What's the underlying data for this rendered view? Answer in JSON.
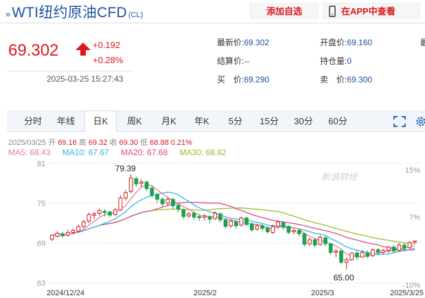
{
  "header": {
    "title": "WTI纽约原油CFD",
    "code": "(CL)",
    "add_watch": "添加自选",
    "open_app": "在APP中查看"
  },
  "quote": {
    "price": "69.302",
    "change": "+0.192",
    "change_pct": "+0.28%",
    "time": "2025-03-25 15:27:43",
    "fields": [
      {
        "label": "最新价:",
        "value": "69.302"
      },
      {
        "label": "开盘价:",
        "value": "69.160"
      },
      {
        "label": "结算价:",
        "value": "--"
      },
      {
        "label": "持仓量:",
        "value": "0"
      },
      {
        "label": "买　价:",
        "value": "69.290"
      },
      {
        "label": "卖　价:",
        "value": "69.300"
      }
    ],
    "overflow_char": "最"
  },
  "tabs": [
    "分时",
    "年线",
    "日K",
    "周K",
    "月K",
    "年K",
    "5分",
    "15分",
    "30分",
    "60分"
  ],
  "active_tab": "日K",
  "info": {
    "date": "2025/03/25",
    "open_label": "开",
    "open": "69.16",
    "high_label": "高",
    "high": "69.32",
    "close_label": "收",
    "close": "69.30",
    "low_label": "低",
    "low": "68.88",
    "pct": "0.21%"
  },
  "ma": {
    "ma5": "MA5: 68.43",
    "ma5_color": "#e879a8",
    "ma10": "MA10: 67.67",
    "ma10_color": "#33b5e5",
    "ma20": "MA20: 67.68",
    "ma20_color": "#d64b7c",
    "ma30": "MA30: 68.82",
    "ma30_color": "#9bbd2a"
  },
  "colors": {
    "up": "#d8191e",
    "down": "#1aa34a",
    "accent": "#1e50a2"
  },
  "chart_data": {
    "type": "candlestick",
    "y_ticks": [
      "81",
      "75",
      "69",
      "63"
    ],
    "ylim": [
      63,
      81
    ],
    "right_ticks": [
      "15%",
      "7%",
      "-10%"
    ],
    "x_ticks": [
      "2024/12/24",
      "2025/2",
      "2025/3",
      "2025/3/25"
    ],
    "annotations": {
      "high": "79.39",
      "low": "65.00"
    },
    "watermark": "新浪财经",
    "candles": [
      [
        69.6,
        70.2,
        69.3,
        70.3
      ],
      [
        70.0,
        70.5,
        69.8,
        70.8
      ],
      [
        70.4,
        70.1,
        69.8,
        70.7
      ],
      [
        70.2,
        70.6,
        70.0,
        71.0
      ],
      [
        70.6,
        70.9,
        70.3,
        71.2
      ],
      [
        70.8,
        71.5,
        70.6,
        71.8
      ],
      [
        71.5,
        72.2,
        71.2,
        72.5
      ],
      [
        72.3,
        73.3,
        72.0,
        73.6
      ],
      [
        73.2,
        73.4,
        72.6,
        73.7
      ],
      [
        73.5,
        73.9,
        73.1,
        74.2
      ],
      [
        73.8,
        73.6,
        73.0,
        74.1
      ],
      [
        73.7,
        73.2,
        72.9,
        73.9
      ],
      [
        73.3,
        74.0,
        73.1,
        74.3
      ],
      [
        74.0,
        75.8,
        73.8,
        76.2
      ],
      [
        75.8,
        76.6,
        75.4,
        77.0
      ],
      [
        76.8,
        78.8,
        76.5,
        79.39
      ],
      [
        78.7,
        77.9,
        77.5,
        79.0
      ],
      [
        78.0,
        78.2,
        77.4,
        78.6
      ],
      [
        78.2,
        77.2,
        76.8,
        78.4
      ],
      [
        77.3,
        76.2,
        75.8,
        77.6
      ],
      [
        76.3,
        75.6,
        75.0,
        76.6
      ],
      [
        75.6,
        74.9,
        74.5,
        75.9
      ],
      [
        75.0,
        75.6,
        74.6,
        75.9
      ],
      [
        75.6,
        74.6,
        74.1,
        75.8
      ],
      [
        74.7,
        74.1,
        73.6,
        74.9
      ],
      [
        74.0,
        73.0,
        72.6,
        74.2
      ],
      [
        73.1,
        73.4,
        72.8,
        73.7
      ],
      [
        73.5,
        72.9,
        72.5,
        73.8
      ],
      [
        73.0,
        72.8,
        72.3,
        73.3
      ],
      [
        72.9,
        73.1,
        72.4,
        73.4
      ],
      [
        73.0,
        72.6,
        72.0,
        73.2
      ],
      [
        72.7,
        73.5,
        72.5,
        73.8
      ],
      [
        73.4,
        72.5,
        72.1,
        73.6
      ],
      [
        72.5,
        71.5,
        71.2,
        72.7
      ],
      [
        71.6,
        72.3,
        71.3,
        72.6
      ],
      [
        72.2,
        71.6,
        71.2,
        72.5
      ],
      [
        71.7,
        72.8,
        71.5,
        73.0
      ],
      [
        72.8,
        71.8,
        71.5,
        73.0
      ],
      [
        71.9,
        71.0,
        70.7,
        72.1
      ],
      [
        71.1,
        71.6,
        70.9,
        71.9
      ],
      [
        71.6,
        71.2,
        70.8,
        71.9
      ],
      [
        71.3,
        70.7,
        70.4,
        71.6
      ],
      [
        70.6,
        71.5,
        70.4,
        71.8
      ],
      [
        71.5,
        72.2,
        71.2,
        72.4
      ],
      [
        72.1,
        71.4,
        71.0,
        72.3
      ],
      [
        71.5,
        70.6,
        70.3,
        71.7
      ],
      [
        70.7,
        70.9,
        70.3,
        71.2
      ],
      [
        70.9,
        70.4,
        70.0,
        71.2
      ],
      [
        70.4,
        68.8,
        68.5,
        70.6
      ],
      [
        68.9,
        69.5,
        68.6,
        69.8
      ],
      [
        69.5,
        68.7,
        68.3,
        69.7
      ],
      [
        68.8,
        69.9,
        68.6,
        70.2
      ],
      [
        69.8,
        68.9,
        68.5,
        70.0
      ],
      [
        68.9,
        67.6,
        67.2,
        69.0
      ],
      [
        67.6,
        67.8,
        66.9,
        68.1
      ],
      [
        67.8,
        66.1,
        65.8,
        68.0
      ],
      [
        66.1,
        66.5,
        65.0,
        66.8
      ],
      [
        66.5,
        67.5,
        66.3,
        67.6
      ],
      [
        67.5,
        66.9,
        66.4,
        67.8
      ],
      [
        66.9,
        67.6,
        66.8,
        67.9
      ],
      [
        67.5,
        67.0,
        66.7,
        67.9
      ],
      [
        67.1,
        68.0,
        66.9,
        68.2
      ],
      [
        68.0,
        67.6,
        67.3,
        68.3
      ],
      [
        67.6,
        67.9,
        67.3,
        68.1
      ],
      [
        67.9,
        68.4,
        67.5,
        68.6
      ],
      [
        68.4,
        67.8,
        67.5,
        68.7
      ],
      [
        67.9,
        68.7,
        67.7,
        69.0
      ],
      [
        68.7,
        68.2,
        67.9,
        69.0
      ],
      [
        68.3,
        69.1,
        68.1,
        69.3
      ],
      [
        69.16,
        69.3,
        68.88,
        69.32
      ]
    ]
  }
}
